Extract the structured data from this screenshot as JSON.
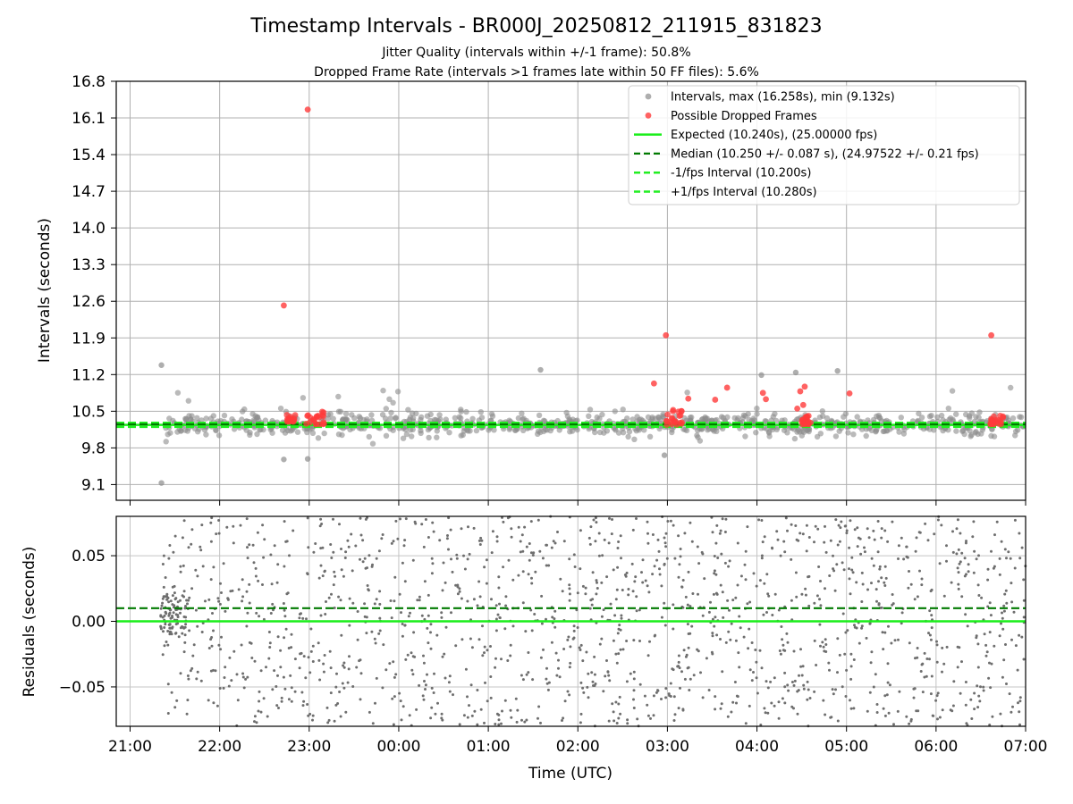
{
  "figure": {
    "title": "Timestamp Intervals - BR000J_20250812_211915_831823",
    "subtitle_1": "Jitter Quality (intervals within +/-1 frame): 50.8%",
    "subtitle_2": "Dropped Frame Rate (intervals >1 frames late within 50 FF files): 5.6%"
  },
  "chart_data": [
    {
      "type": "scatter",
      "ylabel": "Intervals (seconds)",
      "xlabel": "",
      "x_units": "time (UTC), hours after 21:00",
      "xlim": [
        "20:50",
        "07:00"
      ],
      "ylim": [
        8.8,
        16.8
      ],
      "y_ticks": [
        "9.1",
        "9.8",
        "10.5",
        "11.2",
        "11.9",
        "12.6",
        "13.3",
        "14.0",
        "14.7",
        "15.4",
        "16.1",
        "16.8"
      ],
      "grid": true,
      "legend_position": "top-right",
      "colors": {
        "intervals": "#8c8c8c",
        "dropped": "#ff3b3b",
        "expected": "#1aee1a",
        "median": "#007a00",
        "bounds": "#22ee22"
      },
      "legend": [
        {
          "label": "Intervals, max (16.258s), min (9.132s)",
          "kind": "dot-gray"
        },
        {
          "label": "Possible Dropped Frames",
          "kind": "dot-red"
        },
        {
          "label": "Expected (10.240s), (25.00000 fps)",
          "kind": "line-expected"
        },
        {
          "label": "Median (10.250 +/- 0.087 s), (24.97522 +/- 0.21 fps)",
          "kind": "line-median"
        },
        {
          "label": "-1/fps Interval (10.200s)",
          "kind": "line-bound"
        },
        {
          "label": "+1/fps Interval (10.280s)",
          "kind": "line-bound"
        }
      ],
      "reference_lines": {
        "expected": 10.24,
        "median": 10.25,
        "minus_1fps": 10.2,
        "plus_1fps": 10.28
      },
      "interval_summary": {
        "max": 16.258,
        "min": 9.132,
        "first_time": "21:22",
        "last_time": "07:00",
        "typical_spread": 0.087
      },
      "notable_points": [
        {
          "time": "21:21",
          "value": 11.38,
          "kind": "interval"
        },
        {
          "time": "21:21",
          "value": 9.13,
          "kind": "interval"
        },
        {
          "time": "22:43",
          "value": 9.58,
          "kind": "interval"
        },
        {
          "time": "22:59",
          "value": 9.59,
          "kind": "interval"
        },
        {
          "time": "02:58",
          "value": 9.66,
          "kind": "interval"
        },
        {
          "time": "01:35",
          "value": 11.29,
          "kind": "interval"
        },
        {
          "time": "04:03",
          "value": 11.19,
          "kind": "interval"
        },
        {
          "time": "04:26",
          "value": 11.24,
          "kind": "interval"
        },
        {
          "time": "04:54",
          "value": 11.27,
          "kind": "interval"
        },
        {
          "time": "22:59",
          "value": 16.26,
          "kind": "dropped"
        },
        {
          "time": "22:43",
          "value": 12.52,
          "kind": "dropped"
        },
        {
          "time": "02:59",
          "value": 11.95,
          "kind": "dropped"
        },
        {
          "time": "06:37",
          "value": 11.95,
          "kind": "dropped"
        },
        {
          "time": "02:51",
          "value": 11.03,
          "kind": "dropped"
        },
        {
          "time": "03:40",
          "value": 10.95,
          "kind": "dropped"
        },
        {
          "time": "04:32",
          "value": 10.97,
          "kind": "dropped"
        },
        {
          "time": "04:29",
          "value": 10.88,
          "kind": "dropped"
        },
        {
          "time": "04:04",
          "value": 10.85,
          "kind": "dropped"
        },
        {
          "time": "05:02",
          "value": 10.84,
          "kind": "dropped"
        },
        {
          "time": "03:14",
          "value": 10.74,
          "kind": "dropped"
        },
        {
          "time": "04:06",
          "value": 10.73,
          "kind": "dropped"
        },
        {
          "time": "03:32",
          "value": 10.72,
          "kind": "dropped"
        },
        {
          "time": "04:31",
          "value": 10.62,
          "kind": "dropped"
        },
        {
          "time": "04:27",
          "value": 10.55,
          "kind": "dropped"
        }
      ],
      "dropped_clusters": [
        {
          "time_from": "22:58",
          "time_to": "23:10",
          "value_range": [
            10.25,
            10.52
          ]
        },
        {
          "time_from": "02:59",
          "time_to": "03:10",
          "value_range": [
            10.24,
            10.55
          ]
        },
        {
          "time_from": "04:30",
          "time_to": "04:36",
          "value_range": [
            10.25,
            10.45
          ]
        },
        {
          "time_from": "06:36",
          "time_to": "06:45",
          "value_range": [
            10.25,
            10.42
          ]
        },
        {
          "time_from": "22:45",
          "time_to": "22:51",
          "value_range": [
            10.3,
            10.44
          ]
        }
      ]
    },
    {
      "type": "scatter",
      "ylabel": "Residuals (seconds)",
      "xlabel": "Time (UTC)",
      "xlim": [
        "20:50",
        "07:00"
      ],
      "ylim": [
        -0.08,
        0.08
      ],
      "y_ticks": [
        "0.05",
        "0.00",
        "−0.05"
      ],
      "x_ticks": [
        "21:00",
        "22:00",
        "23:00",
        "00:00",
        "01:00",
        "02:00",
        "03:00",
        "04:00",
        "05:00",
        "06:00",
        "07:00"
      ],
      "grid": true,
      "reference_lines": {
        "zero": 0.0,
        "median_offset": 0.01
      },
      "colors": {
        "points": "#6e6e6e",
        "zero": "#1aee1a",
        "median": "#007a00"
      },
      "residual_summary": {
        "first_time": "21:22",
        "last_time": "07:00",
        "spread": "uniform, clipped to the axis range",
        "early_cluster": {
          "time_from": "21:20",
          "time_to": "21:40",
          "range": [
            -0.01,
            0.02
          ]
        }
      }
    }
  ]
}
